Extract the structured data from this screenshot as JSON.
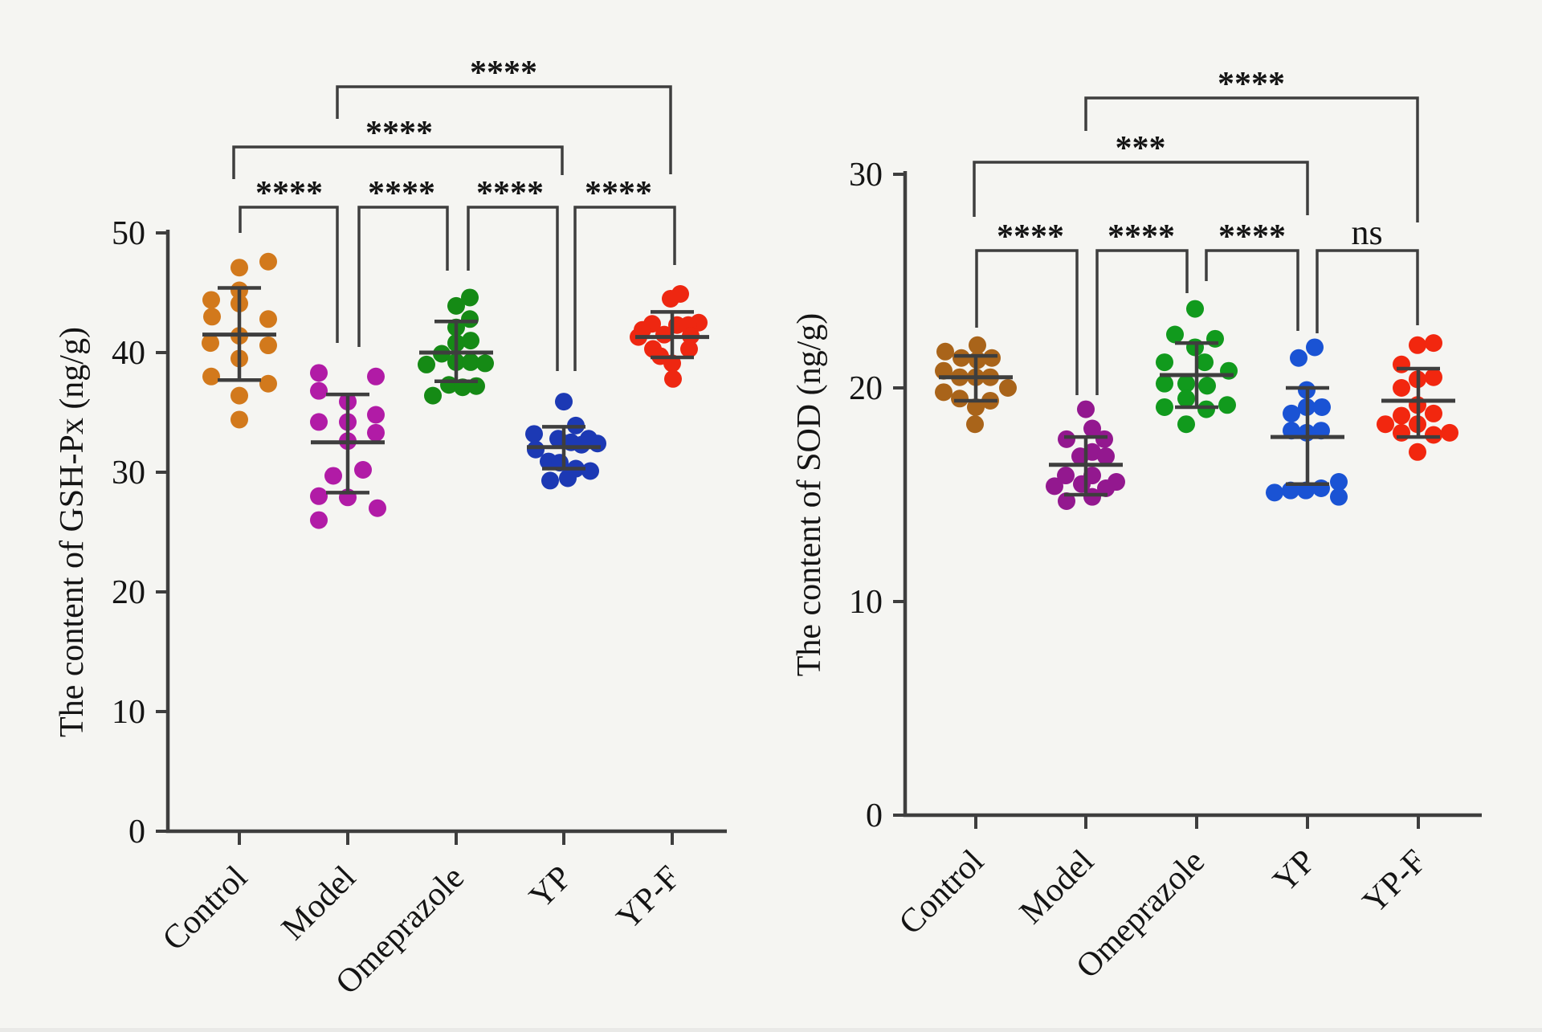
{
  "figure": {
    "background": "#f5f5f2",
    "axis_color": "#3e3e3e",
    "text_color": "#141414"
  },
  "chart_data": [
    {
      "type": "scatter",
      "name": "gsh-px",
      "ylabel": "The content of GSH-Px (ng/g)",
      "ylim": [
        0,
        50
      ],
      "yticks": [
        0,
        10,
        20,
        30,
        40,
        50
      ],
      "grid": "off",
      "categories": [
        "Control",
        "Model",
        "Omeprazole",
        "YP",
        "YP-F"
      ],
      "series": [
        {
          "name": "Control",
          "color": "#d2791c",
          "mean": 41.5,
          "sd_high": 45.4,
          "sd_low": 37.7,
          "points": [
            [
              36,
              47.6
            ],
            [
              0,
              47.1
            ],
            [
              0,
              45.2
            ],
            [
              -35,
              44.4
            ],
            [
              0,
              44.1
            ],
            [
              -34,
              43.0
            ],
            [
              36,
              42.8
            ],
            [
              0,
              41.4
            ],
            [
              -36,
              40.8
            ],
            [
              36,
              40.6
            ],
            [
              0,
              39.5
            ],
            [
              -35,
              38.0
            ],
            [
              36,
              37.4
            ],
            [
              0,
              36.4
            ],
            [
              0,
              34.4
            ]
          ]
        },
        {
          "name": "Model",
          "color": "#b11ba6",
          "mean": 32.5,
          "sd_high": 36.5,
          "sd_low": 28.3,
          "points": [
            [
              -36,
              38.3
            ],
            [
              35,
              38.0
            ],
            [
              -36,
              36.8
            ],
            [
              0,
              35.9
            ],
            [
              35,
              34.8
            ],
            [
              -36,
              34.2
            ],
            [
              0,
              34.2
            ],
            [
              35,
              33.3
            ],
            [
              0,
              32.6
            ],
            [
              19,
              30.2
            ],
            [
              -18,
              29.7
            ],
            [
              -36,
              28.0
            ],
            [
              0,
              27.9
            ],
            [
              37,
              27.0
            ],
            [
              -36,
              26.0
            ]
          ]
        },
        {
          "name": "Omeprazole",
          "color": "#158a15",
          "mean": 40.0,
          "sd_high": 42.6,
          "sd_low": 37.6,
          "points": [
            [
              17,
              44.6
            ],
            [
              0,
              43.9
            ],
            [
              17,
              42.8
            ],
            [
              0,
              42.1
            ],
            [
              18,
              41.0
            ],
            [
              0,
              40.8
            ],
            [
              -18,
              39.9
            ],
            [
              0,
              39.2
            ],
            [
              18,
              39.2
            ],
            [
              36,
              39.1
            ],
            [
              -37,
              39.0
            ],
            [
              -9,
              37.3
            ],
            [
              25,
              37.2
            ],
            [
              8,
              37.1
            ],
            [
              -29,
              36.4
            ]
          ]
        },
        {
          "name": "YP",
          "color": "#1c39b4",
          "mean": 32.1,
          "sd_high": 33.8,
          "sd_low": 30.3,
          "points": [
            [
              0,
              35.9
            ],
            [
              15,
              33.9
            ],
            [
              -37,
              33.2
            ],
            [
              31,
              32.8
            ],
            [
              -7,
              32.8
            ],
            [
              9,
              32.5
            ],
            [
              42,
              32.4
            ],
            [
              22,
              32.3
            ],
            [
              -35,
              31.9
            ],
            [
              -19,
              30.9
            ],
            [
              -5,
              30.8
            ],
            [
              15,
              30.3
            ],
            [
              33,
              30.1
            ],
            [
              5,
              29.5
            ],
            [
              -17,
              29.3
            ]
          ]
        },
        {
          "name": "YP-F",
          "color": "#ee2711",
          "mean": 41.3,
          "sd_high": 43.4,
          "sd_low": 39.6,
          "points": [
            [
              10,
              44.9
            ],
            [
              -2,
              44.5
            ],
            [
              33,
              42.5
            ],
            [
              -25,
              42.4
            ],
            [
              6,
              42.3
            ],
            [
              20,
              42.3
            ],
            [
              -37,
              41.9
            ],
            [
              -10,
              41.5
            ],
            [
              23,
              41.4
            ],
            [
              -42,
              41.3
            ],
            [
              -24,
              40.3
            ],
            [
              21,
              40.3
            ],
            [
              -15,
              39.7
            ],
            [
              0,
              39.1
            ],
            [
              1,
              37.8
            ]
          ]
        }
      ],
      "significance": [
        {
          "groups": [
            "Control",
            "Model"
          ],
          "label": "****"
        },
        {
          "groups": [
            "Model",
            "Omeprazole"
          ],
          "label": "****"
        },
        {
          "groups": [
            "Omeprazole",
            "YP"
          ],
          "label": "****"
        },
        {
          "groups": [
            "YP",
            "YP-F"
          ],
          "label": "****"
        },
        {
          "groups": [
            "Control",
            "YP"
          ],
          "label": "****"
        },
        {
          "groups": [
            "Model",
            "YP-F"
          ],
          "label": "****"
        }
      ]
    },
    {
      "type": "scatter",
      "name": "sod",
      "ylabel": "The content of SOD (ng/g)",
      "ylim": [
        0,
        30
      ],
      "yticks": [
        0,
        10,
        20,
        30
      ],
      "grid": "off",
      "categories": [
        "Control",
        "Model",
        "Omeprazole",
        "YP",
        "YP-F"
      ],
      "series": [
        {
          "name": "Control",
          "color": "#a9641a",
          "mean": 20.5,
          "sd_high": 21.5,
          "sd_low": 19.4,
          "points": [
            [
              2,
              22.0
            ],
            [
              -38,
              21.7
            ],
            [
              -18,
              21.4
            ],
            [
              20,
              21.4
            ],
            [
              2,
              21.3
            ],
            [
              -40,
              20.8
            ],
            [
              -20,
              20.5
            ],
            [
              0,
              20.5
            ],
            [
              18,
              20.5
            ],
            [
              40,
              20.0
            ],
            [
              -40,
              19.8
            ],
            [
              -20,
              19.5
            ],
            [
              18,
              19.4
            ],
            [
              0,
              19.1
            ],
            [
              -1,
              18.3
            ]
          ]
        },
        {
          "name": "Model",
          "color": "#93188f",
          "mean": 16.4,
          "sd_high": 17.7,
          "sd_low": 15.0,
          "points": [
            [
              0,
              19.0
            ],
            [
              8,
              18.1
            ],
            [
              -24,
              17.6
            ],
            [
              23,
              17.6
            ],
            [
              8,
              17.0
            ],
            [
              -7,
              16.8
            ],
            [
              25,
              16.8
            ],
            [
              -25,
              15.9
            ],
            [
              8,
              15.9
            ],
            [
              38,
              15.6
            ],
            [
              -5,
              15.5
            ],
            [
              -39,
              15.4
            ],
            [
              25,
              15.3
            ],
            [
              8,
              14.9
            ],
            [
              -24,
              14.7
            ]
          ]
        },
        {
          "name": "Omeprazole",
          "color": "#119a1d",
          "mean": 20.6,
          "sd_high": 22.1,
          "sd_low": 19.1,
          "points": [
            [
              -2,
              23.7
            ],
            [
              -27,
              22.5
            ],
            [
              23,
              22.3
            ],
            [
              -2,
              21.9
            ],
            [
              -40,
              21.2
            ],
            [
              10,
              21.2
            ],
            [
              40,
              20.8
            ],
            [
              -40,
              20.2
            ],
            [
              -13,
              20.2
            ],
            [
              13,
              20.1
            ],
            [
              -13,
              19.5
            ],
            [
              38,
              19.2
            ],
            [
              -40,
              19.1
            ],
            [
              12,
              19.0
            ],
            [
              -13,
              18.3
            ]
          ]
        },
        {
          "name": "YP",
          "color": "#1a53d4",
          "mean": 17.7,
          "sd_high": 20.0,
          "sd_low": 15.5,
          "points": [
            [
              9,
              21.9
            ],
            [
              -11,
              21.4
            ],
            [
              -1,
              19.9
            ],
            [
              -1,
              19.1
            ],
            [
              18,
              19.1
            ],
            [
              -20,
              18.8
            ],
            [
              17,
              18.0
            ],
            [
              -20,
              18.0
            ],
            [
              -1,
              17.9
            ],
            [
              39,
              15.6
            ],
            [
              17,
              15.3
            ],
            [
              -2,
              15.2
            ],
            [
              -21,
              15.2
            ],
            [
              -41,
              15.1
            ],
            [
              39,
              14.9
            ]
          ]
        },
        {
          "name": "YP-F",
          "color": "#f2270f",
          "mean": 19.4,
          "sd_high": 20.9,
          "sd_low": 17.7,
          "points": [
            [
              19,
              22.1
            ],
            [
              -1,
              22.0
            ],
            [
              -21,
              21.1
            ],
            [
              19,
              20.5
            ],
            [
              -1,
              20.4
            ],
            [
              -21,
              20.0
            ],
            [
              -1,
              19.2
            ],
            [
              19,
              18.8
            ],
            [
              -21,
              18.7
            ],
            [
              -41,
              18.3
            ],
            [
              -1,
              18.3
            ],
            [
              -21,
              17.9
            ],
            [
              39,
              17.9
            ],
            [
              19,
              17.8
            ],
            [
              -1,
              17.0
            ]
          ]
        }
      ],
      "significance": [
        {
          "groups": [
            "Control",
            "Model"
          ],
          "label": "****"
        },
        {
          "groups": [
            "Model",
            "Omeprazole"
          ],
          "label": "****"
        },
        {
          "groups": [
            "Omeprazole",
            "YP"
          ],
          "label": "****"
        },
        {
          "groups": [
            "YP",
            "YP-F"
          ],
          "label": "ns"
        },
        {
          "groups": [
            "Control",
            "YP"
          ],
          "label": "***"
        },
        {
          "groups": [
            "Model",
            "YP-F"
          ],
          "label": "****"
        }
      ]
    }
  ]
}
